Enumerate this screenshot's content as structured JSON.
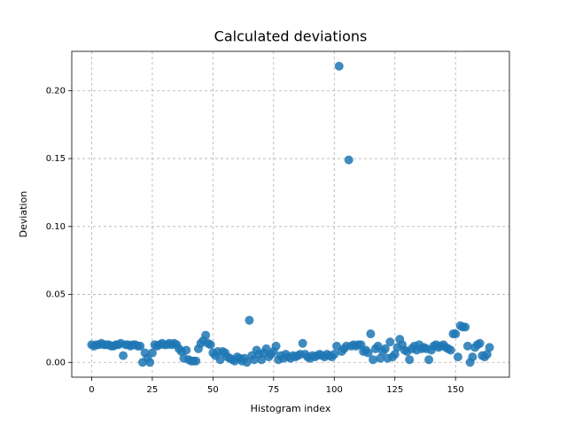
{
  "chart_data": {
    "type": "scatter",
    "title": "Calculated deviations",
    "x_label": "Histogram index",
    "y_label": "Deviation",
    "color": "#1f77b4",
    "grid": true,
    "xlim": [
      -8.2,
      172.2
    ],
    "ylim": [
      -0.0109,
      0.2289
    ],
    "xticks": [
      0,
      25,
      50,
      75,
      100,
      125,
      150
    ],
    "yticks": [
      {
        "value": 0,
        "label": "0.00"
      },
      {
        "value": 0.05,
        "label": "0.05"
      },
      {
        "value": 0.1,
        "label": "0.10"
      },
      {
        "value": 0.15,
        "label": "0.15"
      },
      {
        "value": 0.2,
        "label": "0.20"
      }
    ],
    "x": [
      0,
      1,
      2,
      3,
      4,
      5,
      6,
      7,
      8,
      9,
      10,
      11,
      12,
      13,
      14,
      15,
      16,
      17,
      18,
      19,
      20,
      21,
      22,
      23,
      24,
      25,
      26,
      27,
      28,
      29,
      30,
      31,
      32,
      33,
      34,
      35,
      36,
      37,
      38,
      39,
      40,
      41,
      42,
      43,
      44,
      45,
      46,
      47,
      48,
      49,
      50,
      51,
      52,
      53,
      54,
      55,
      56,
      57,
      58,
      59,
      60,
      61,
      62,
      63,
      64,
      65,
      66,
      67,
      68,
      69,
      70,
      71,
      72,
      73,
      74,
      75,
      76,
      77,
      78,
      79,
      80,
      81,
      82,
      83,
      84,
      85,
      86,
      87,
      88,
      89,
      90,
      91,
      92,
      93,
      94,
      95,
      96,
      97,
      98,
      99,
      100,
      101,
      102,
      103,
      104,
      105,
      106,
      107,
      108,
      109,
      110,
      111,
      112,
      113,
      114,
      115,
      116,
      117,
      118,
      119,
      120,
      121,
      122,
      123,
      124,
      125,
      126,
      127,
      128,
      129,
      130,
      131,
      132,
      133,
      134,
      135,
      136,
      137,
      138,
      139,
      140,
      141,
      142,
      143,
      144,
      145,
      146,
      147,
      148,
      149,
      150,
      151,
      152,
      153,
      154,
      155,
      156,
      157,
      158,
      159,
      160,
      161,
      162,
      163,
      164
    ],
    "values": [
      0.013,
      0.012,
      0.013,
      0.013,
      0.014,
      0.013,
      0.013,
      0.013,
      0.012,
      0.012,
      0.013,
      0.013,
      0.014,
      0.005,
      0.013,
      0.013,
      0.012,
      0.013,
      0.013,
      0.012,
      0.012,
      0.0,
      0.007,
      0.003,
      0.0,
      0.007,
      0.013,
      0.012,
      0.013,
      0.014,
      0.013,
      0.013,
      0.014,
      0.013,
      0.014,
      0.013,
      0.01,
      0.008,
      0.003,
      0.009,
      0.002,
      0.001,
      0.001,
      0.001,
      0.01,
      0.014,
      0.016,
      0.02,
      0.014,
      0.013,
      0.007,
      0.005,
      0.008,
      0.002,
      0.008,
      0.007,
      0.004,
      0.003,
      0.002,
      0.001,
      0.004,
      0.003,
      0.001,
      0.003,
      0.0,
      0.031,
      0.005,
      0.002,
      0.009,
      0.006,
      0.002,
      0.007,
      0.01,
      0.004,
      0.006,
      0.008,
      0.012,
      0.002,
      0.005,
      0.003,
      0.006,
      0.004,
      0.003,
      0.005,
      0.004,
      0.005,
      0.006,
      0.014,
      0.006,
      0.004,
      0.003,
      0.005,
      0.004,
      0.005,
      0.006,
      0.005,
      0.004,
      0.006,
      0.005,
      0.004,
      0.006,
      0.012,
      0.218,
      0.008,
      0.01,
      0.012,
      0.149,
      0.012,
      0.013,
      0.012,
      0.013,
      0.013,
      0.008,
      0.009,
      0.007,
      0.021,
      0.002,
      0.01,
      0.012,
      0.003,
      0.008,
      0.01,
      0.003,
      0.015,
      0.004,
      0.006,
      0.011,
      0.017,
      0.013,
      0.009,
      0.008,
      0.002,
      0.01,
      0.012,
      0.009,
      0.013,
      0.01,
      0.011,
      0.01,
      0.002,
      0.009,
      0.012,
      0.013,
      0.011,
      0.012,
      0.013,
      0.011,
      0.01,
      0.009,
      0.021,
      0.021,
      0.004,
      0.027,
      0.026,
      0.026,
      0.012,
      0.0,
      0.004,
      0.011,
      0.013,
      0.014,
      0.005,
      0.004,
      0.006,
      0.011
    ]
  }
}
